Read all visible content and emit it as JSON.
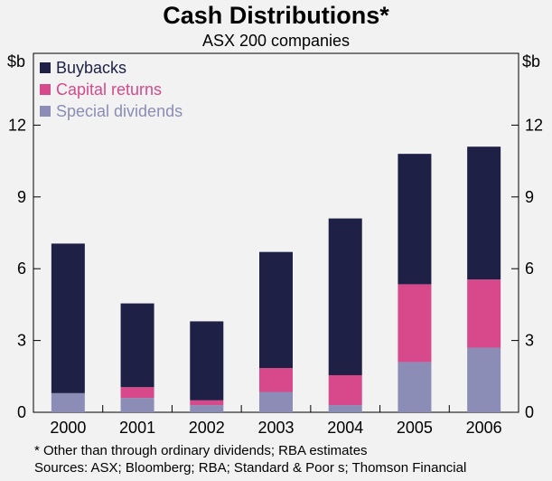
{
  "chart_data": {
    "type": "bar",
    "stacked": true,
    "title": "Cash Distributions*",
    "subtitle": "ASX 200 companies",
    "ylabel_left": "$b",
    "ylabel_right": "$b",
    "xlabel": "",
    "ylim": [
      0,
      15
    ],
    "yticks": [
      0,
      3,
      6,
      9,
      12
    ],
    "categories": [
      "2000",
      "2001",
      "2002",
      "2003",
      "2004",
      "2005",
      "2006"
    ],
    "series": [
      {
        "name": "Special dividends",
        "color": "#8b8db6",
        "values": [
          0.8,
          0.6,
          0.3,
          0.85,
          0.3,
          2.1,
          2.7
        ]
      },
      {
        "name": "Capital returns",
        "color": "#d7498a",
        "values": [
          0.0,
          0.45,
          0.2,
          1.0,
          1.25,
          3.25,
          2.85
        ]
      },
      {
        "name": "Buybacks",
        "color": "#1e2045",
        "values": [
          6.25,
          3.5,
          3.3,
          4.85,
          6.55,
          5.45,
          5.55
        ]
      }
    ],
    "legend": [
      {
        "name": "Buybacks",
        "color": "#1e2045",
        "text_color": "#1e2045"
      },
      {
        "name": "Capital returns",
        "color": "#d7498a",
        "text_color": "#d7498a"
      },
      {
        "name": "Special dividends",
        "color": "#8b8db6",
        "text_color": "#8b8db6"
      }
    ],
    "legend_position": "top-left",
    "grid": false
  },
  "footnotes": {
    "note": "*  Other than through ordinary dividends; RBA estimates",
    "sources": "Sources: ASX; Bloomberg; RBA; Standard & Poor s; Thomson Financial"
  }
}
